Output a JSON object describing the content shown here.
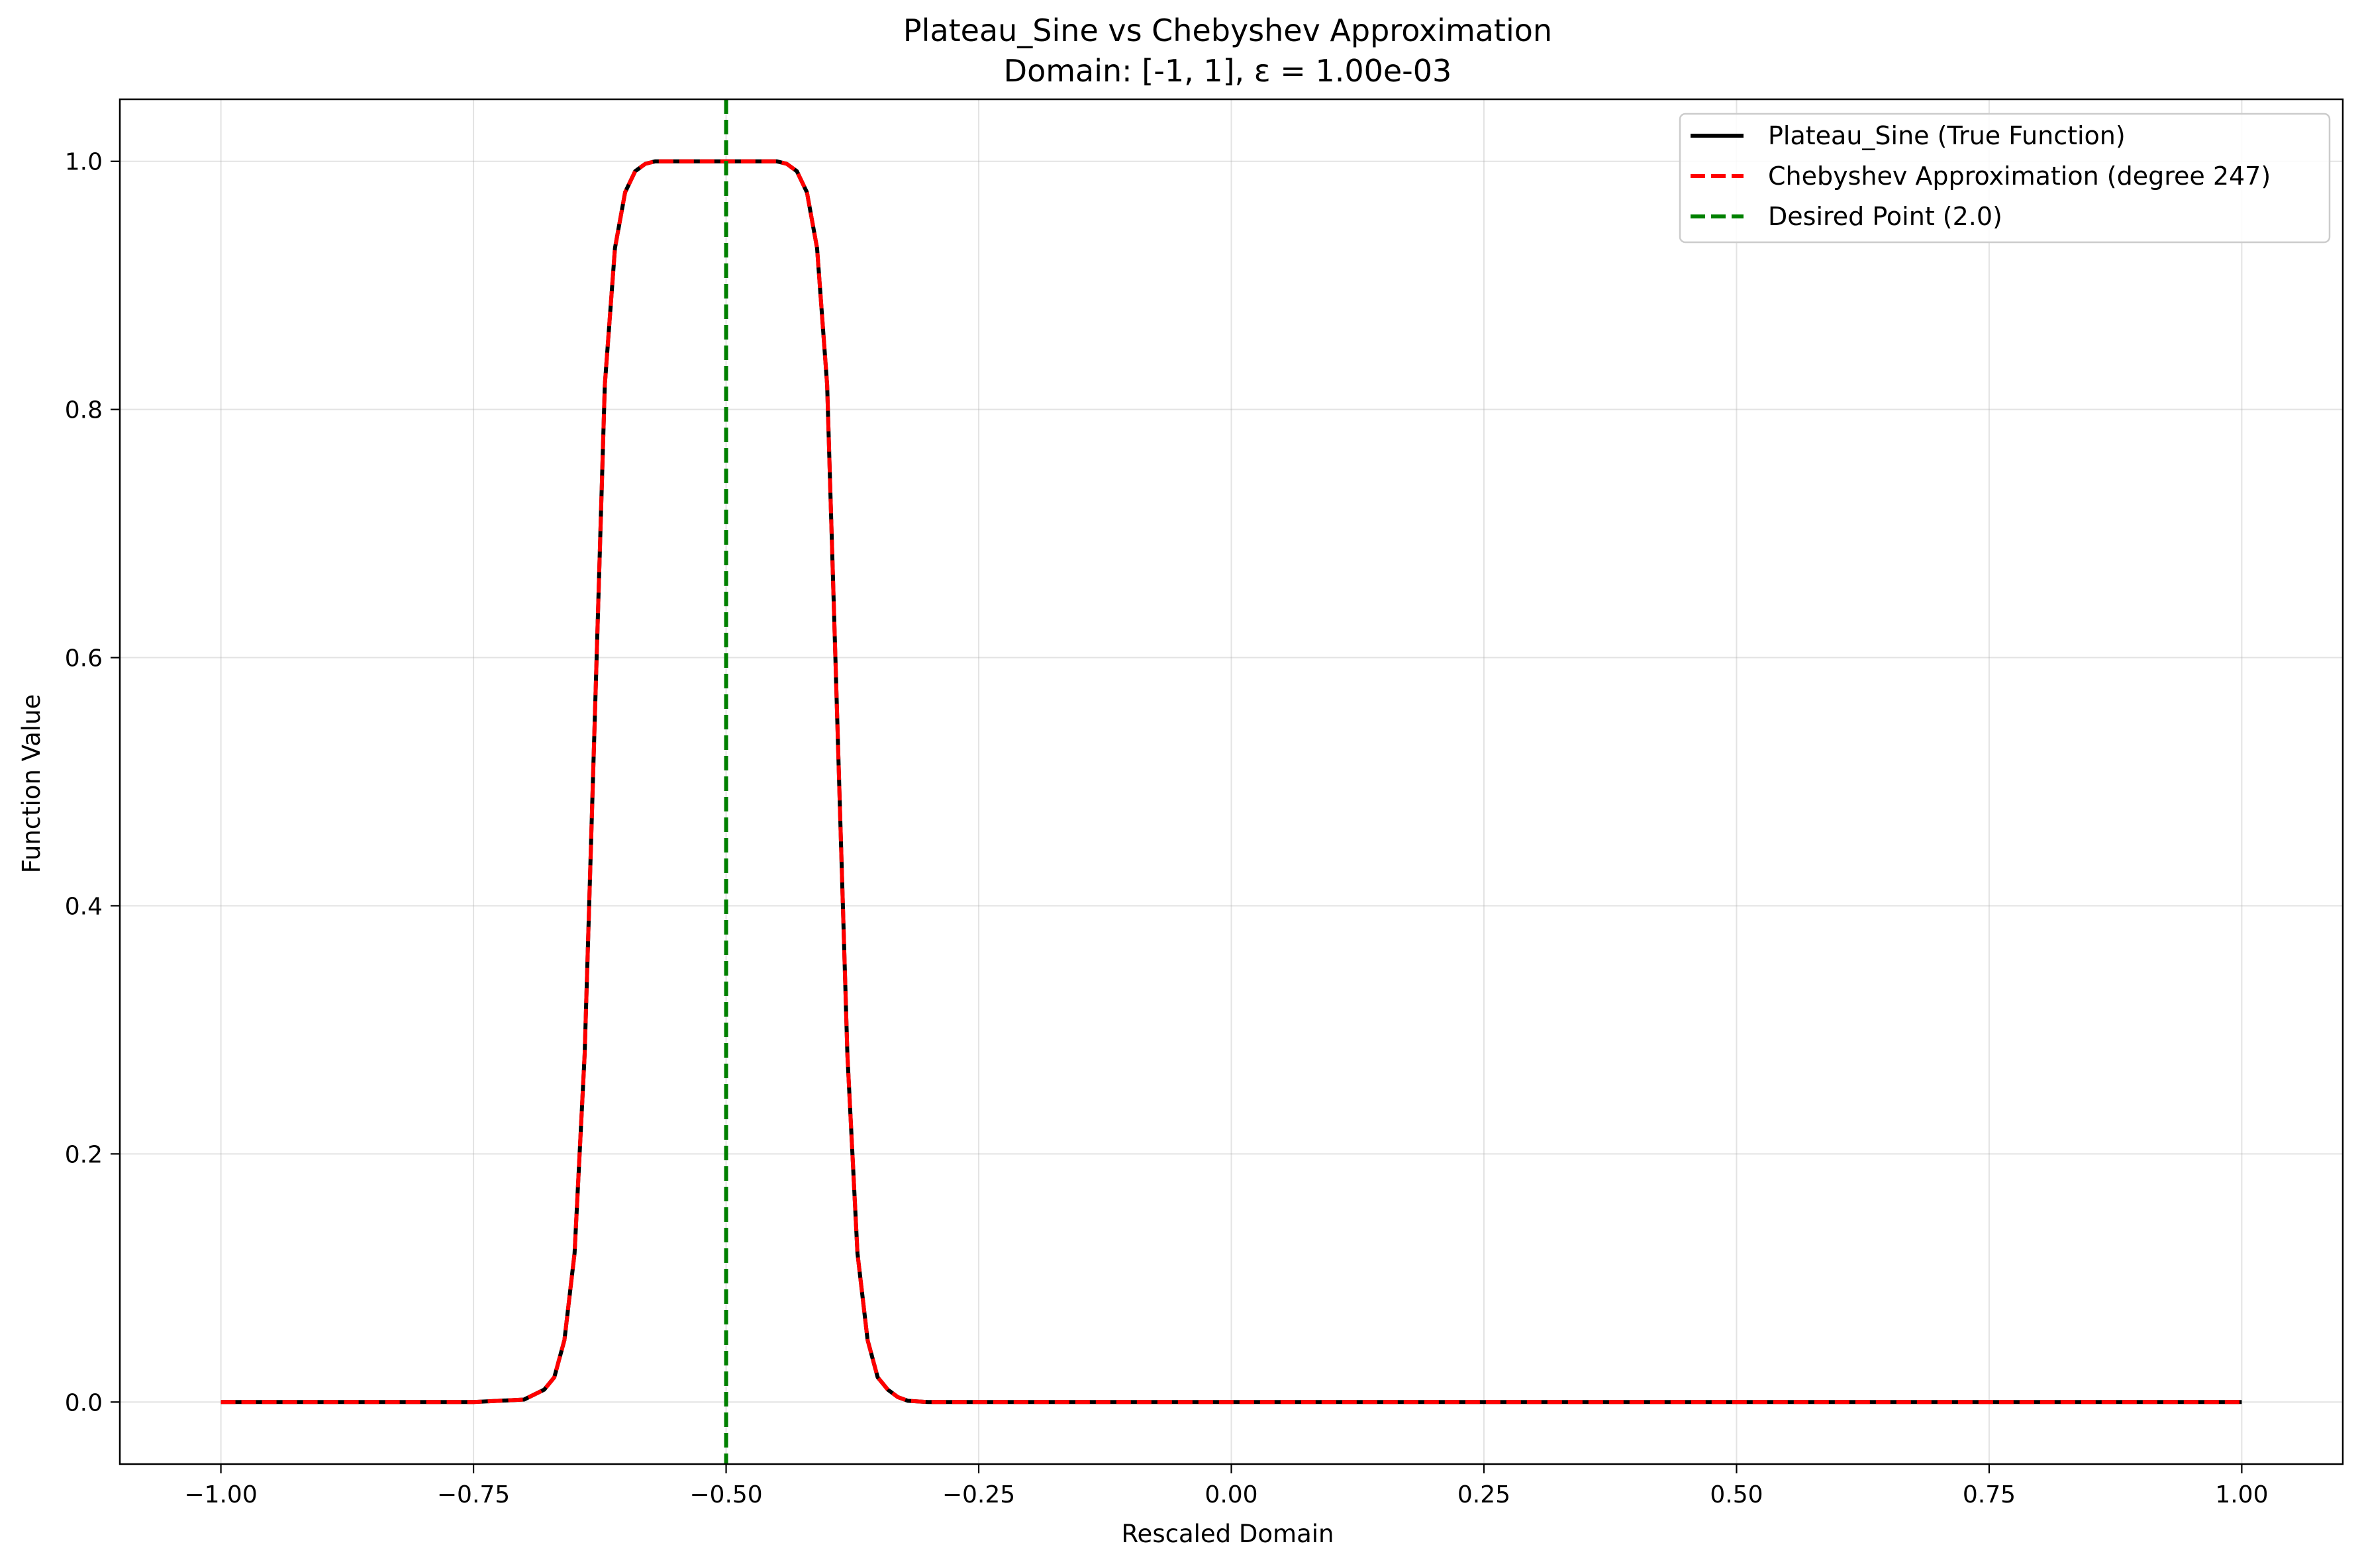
{
  "chart_data": {
    "type": "line",
    "title": "Plateau_Sine vs Chebyshev Approximation",
    "subtitle": "Domain: [-1, 1], ε = 1.00e-03",
    "xlabel": "Rescaled Domain",
    "ylabel": "Function Value",
    "xlim": [
      -1.1,
      1.1
    ],
    "ylim": [
      -0.05,
      1.05
    ],
    "xticks": [
      -1.0,
      -0.75,
      -0.5,
      -0.25,
      0.0,
      0.25,
      0.5,
      0.75,
      1.0
    ],
    "xtick_labels": [
      "−1.00",
      "−0.75",
      "−0.50",
      "−0.25",
      "0.00",
      "0.25",
      "0.50",
      "0.75",
      "1.00"
    ],
    "yticks": [
      0.0,
      0.2,
      0.4,
      0.6,
      0.8,
      1.0
    ],
    "ytick_labels": [
      "0.0",
      "0.2",
      "0.4",
      "0.6",
      "0.8",
      "1.0"
    ],
    "grid": true,
    "legend_position": "top-right",
    "series": [
      {
        "name": "Plateau_Sine (True Function)",
        "color": "#000000",
        "style": "solid",
        "x": [
          -1.0,
          -0.75,
          -0.7,
          -0.68,
          -0.67,
          -0.66,
          -0.65,
          -0.64,
          -0.63,
          -0.62,
          -0.61,
          -0.6,
          -0.59,
          -0.58,
          -0.57,
          -0.56,
          -0.55,
          -0.5,
          -0.45,
          -0.44,
          -0.43,
          -0.42,
          -0.41,
          -0.4,
          -0.39,
          -0.38,
          -0.37,
          -0.36,
          -0.35,
          -0.34,
          -0.33,
          -0.32,
          -0.3,
          -0.25,
          0.0,
          0.5,
          1.0
        ],
        "y": [
          0.0,
          0.0,
          0.002,
          0.01,
          0.02,
          0.05,
          0.12,
          0.28,
          0.55,
          0.82,
          0.93,
          0.975,
          0.992,
          0.998,
          1.0,
          1.0,
          1.0,
          1.0,
          1.0,
          0.998,
          0.992,
          0.975,
          0.93,
          0.82,
          0.55,
          0.28,
          0.12,
          0.05,
          0.02,
          0.01,
          0.004,
          0.001,
          0.0,
          0.0,
          0.0,
          0.0,
          0.0
        ]
      },
      {
        "name": "Chebyshev Approximation (degree 247)",
        "color": "#ff0000",
        "style": "dashed",
        "x": [
          -1.0,
          -0.75,
          -0.7,
          -0.68,
          -0.67,
          -0.66,
          -0.65,
          -0.64,
          -0.63,
          -0.62,
          -0.61,
          -0.6,
          -0.59,
          -0.58,
          -0.57,
          -0.56,
          -0.55,
          -0.5,
          -0.45,
          -0.44,
          -0.43,
          -0.42,
          -0.41,
          -0.4,
          -0.39,
          -0.38,
          -0.37,
          -0.36,
          -0.35,
          -0.34,
          -0.33,
          -0.32,
          -0.3,
          -0.25,
          0.0,
          0.5,
          1.0
        ],
        "y": [
          0.0,
          0.0,
          0.002,
          0.01,
          0.02,
          0.05,
          0.12,
          0.28,
          0.55,
          0.82,
          0.93,
          0.975,
          0.992,
          0.998,
          1.0,
          1.0,
          1.0,
          1.0,
          1.0,
          0.998,
          0.992,
          0.975,
          0.93,
          0.82,
          0.55,
          0.28,
          0.12,
          0.05,
          0.02,
          0.01,
          0.004,
          0.001,
          0.0,
          0.0,
          0.0,
          0.0,
          0.0
        ]
      },
      {
        "name": "Desired Point (2.0)",
        "color": "#008000",
        "style": "dashed",
        "vline_x": -0.5
      }
    ]
  }
}
